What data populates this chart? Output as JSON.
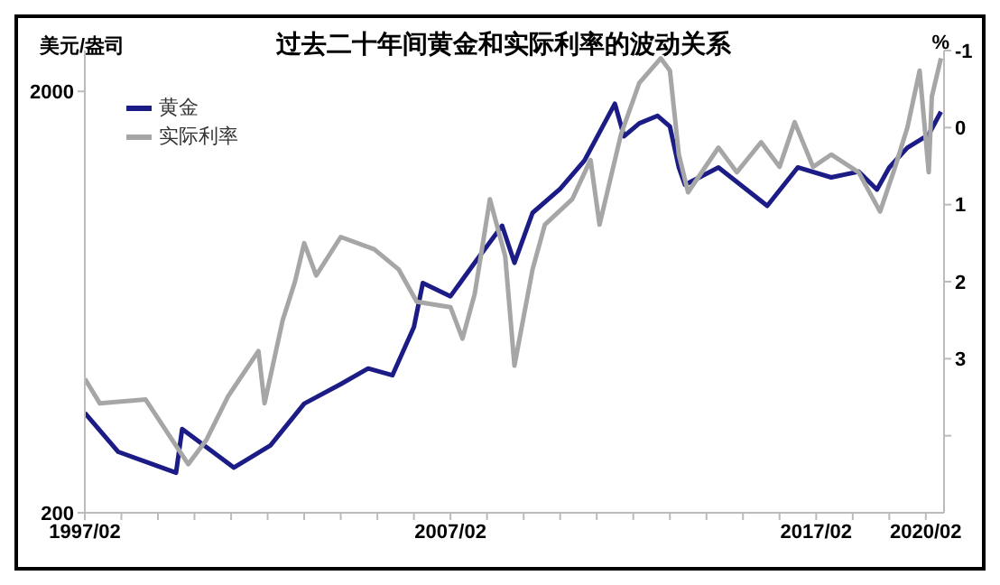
{
  "chart_data": {
    "type": "line",
    "title": "过去二十年间黄金和实际利率的波动关系",
    "ylabel": "美元/盎司",
    "y2label": "%",
    "log": "y",
    "legend": "top left",
    "marker": "none",
    "line_style": "solid",
    "xlim": [
      "1997-02",
      "2020-08"
    ],
    "xticks": [
      {
        "value": "1997-02",
        "label": "1997/02"
      },
      {
        "value": "1998-02",
        "label": null
      },
      {
        "value": "1999-02",
        "label": null
      },
      {
        "value": "2000-02",
        "label": null
      },
      {
        "value": "2001-02",
        "label": null
      },
      {
        "value": "2002-02",
        "label": null
      },
      {
        "value": "2003-02",
        "label": null
      },
      {
        "value": "2004-02",
        "label": null
      },
      {
        "value": "2005-02",
        "label": null
      },
      {
        "value": "2006-02",
        "label": null
      },
      {
        "value": "2007-02",
        "label": "2007/02"
      },
      {
        "value": "2008-02",
        "label": null
      },
      {
        "value": "2009-02",
        "label": null
      },
      {
        "value": "2010-02",
        "label": null
      },
      {
        "value": "2011-02",
        "label": null
      },
      {
        "value": "2012-02",
        "label": null
      },
      {
        "value": "2013-02",
        "label": null
      },
      {
        "value": "2014-02",
        "label": null
      },
      {
        "value": "2015-02",
        "label": null
      },
      {
        "value": "2016-02",
        "label": null
      },
      {
        "value": "2017-02",
        "label": "2017/02"
      },
      {
        "value": "2018-02",
        "label": null
      },
      {
        "value": "2019-02",
        "label": null
      },
      {
        "value": "2020-02",
        "label": "2020/02"
      }
    ],
    "ylim": [
      200,
      2500
    ],
    "yticks": [
      200,
      2000
    ],
    "y2lim": [
      5,
      -1
    ],
    "y2ticks": [
      -1,
      0,
      1,
      2,
      3,
      {
        "value": 4,
        "label": null
      }
    ],
    "series": [
      {
        "name": "黄金",
        "color": "#1c1c86",
        "x": [
          "1997-02",
          "1998-01",
          "1999-08",
          "1999-10",
          "2001-03",
          "2002-03",
          "2003-02",
          "2004-02",
          "2004-11",
          "2005-07",
          "2006-02",
          "2006-05",
          "2007-02",
          "2007-10",
          "2008-07",
          "2008-11",
          "2009-05",
          "2010-02",
          "2010-10",
          "2011-08",
          "2011-11",
          "2012-04",
          "2012-10",
          "2013-02",
          "2013-05",
          "2013-07",
          "2014-06",
          "2015-10",
          "2016-08",
          "2017-07",
          "2018-04",
          "2018-10",
          "2019-02",
          "2019-08",
          "2020-03",
          "2020-07"
        ],
        "values": [
          345,
          279,
          249,
          316,
          256,
          289,
          363,
          404,
          440,
          424,
          552,
          702,
          653,
          784,
          960,
          784,
          1030,
          1175,
          1370,
          1870,
          1565,
          1680,
          1750,
          1650,
          1320,
          1200,
          1320,
          1070,
          1320,
          1250,
          1290,
          1170,
          1320,
          1470,
          1580,
          1790
        ]
      },
      {
        "name": "实际利率",
        "color": "#a6a6a6",
        "axis": "y2",
        "x": [
          "1997-02",
          "1997-07",
          "1998-10",
          "1999-12",
          "2000-06",
          "2001-01",
          "2001-11",
          "2002-01",
          "2002-07",
          "2002-11",
          "2003-02",
          "2003-06",
          "2004-02",
          "2005-01",
          "2005-09",
          "2006-03",
          "2007-02",
          "2007-06",
          "2007-10",
          "2007-12",
          "2008-03",
          "2008-08",
          "2008-11",
          "2009-05",
          "2009-09",
          "2010-06",
          "2010-12",
          "2011-03",
          "2011-10",
          "2012-04",
          "2012-11",
          "2013-02",
          "2013-05",
          "2013-08",
          "2014-06",
          "2014-12",
          "2015-08",
          "2016-02",
          "2016-07",
          "2017-01",
          "2017-07",
          "2018-04",
          "2018-11",
          "2019-04",
          "2019-08",
          "2019-12",
          "2020-03",
          "2020-04",
          "2020-07"
        ],
        "values": [
          3.26,
          3.58,
          3.53,
          4.37,
          4.05,
          3.49,
          2.9,
          3.58,
          2.5,
          2.0,
          1.5,
          1.92,
          1.42,
          1.58,
          1.84,
          2.26,
          2.33,
          2.74,
          2.16,
          1.67,
          0.93,
          1.67,
          3.09,
          1.84,
          1.26,
          0.93,
          0.42,
          1.26,
          0.09,
          -0.58,
          -0.9,
          -0.74,
          0.35,
          0.84,
          0.26,
          0.58,
          0.19,
          0.51,
          -0.07,
          0.51,
          0.35,
          0.58,
          1.09,
          0.51,
          0,
          -0.74,
          0.58,
          -0.4,
          -0.9
        ]
      }
    ]
  }
}
